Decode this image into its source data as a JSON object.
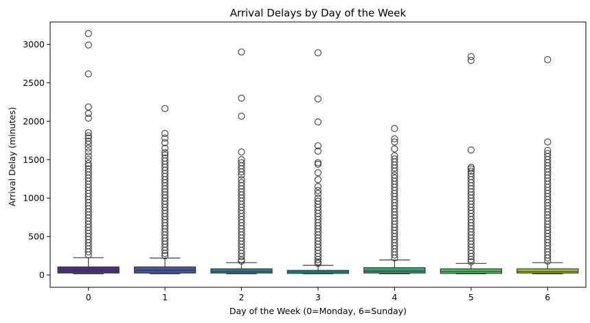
{
  "chart_data": {
    "type": "box",
    "title": "Arrival Delays by Day of the Week",
    "xlabel": "Day of the Week (0=Monday, 6=Sunday)",
    "ylabel": "Arrival Delay (minutes)",
    "categories": [
      "0",
      "1",
      "2",
      "3",
      "4",
      "5",
      "6"
    ],
    "ylim": [
      -160,
      3290
    ],
    "yticks": [
      0,
      500,
      1000,
      1500,
      2000,
      2500,
      3000
    ],
    "grid": false,
    "palette": "viridis",
    "boxes": [
      {
        "category": "0",
        "color": "#4b2f7f",
        "whisker_low": 15,
        "q1": 25,
        "median": 55,
        "q3": 105,
        "whisker_high": 225,
        "outliers": [
          3140,
          2990,
          2615,
          2185,
          2100,
          2040,
          1850,
          1810,
          1780,
          1740,
          1700,
          1650,
          1600,
          1545,
          1500,
          1450,
          1420,
          1380,
          1340,
          1300,
          1260,
          1220,
          1180,
          1140,
          1100,
          1060,
          1020,
          980,
          940,
          900,
          860,
          820,
          780,
          740,
          700,
          660,
          620,
          580,
          540,
          500,
          460,
          420,
          380,
          340,
          300,
          260
        ]
      },
      {
        "category": "1",
        "color": "#3e5a93",
        "whisker_low": 15,
        "q1": 25,
        "median": 60,
        "q3": 105,
        "whisker_high": 220,
        "outliers": [
          2165,
          1840,
          1780,
          1720,
          1650,
          1590,
          1560,
          1520,
          1480,
          1440,
          1400,
          1360,
          1320,
          1280,
          1240,
          1200,
          1160,
          1120,
          1080,
          1040,
          1000,
          960,
          920,
          880,
          840,
          800,
          760,
          720,
          680,
          640,
          600,
          560,
          520,
          480,
          440,
          400,
          360,
          320,
          280,
          250
        ]
      },
      {
        "category": "2",
        "color": "#2f7c91",
        "whisker_low": 15,
        "q1": 25,
        "median": 45,
        "q3": 80,
        "whisker_high": 160,
        "outliers": [
          2900,
          2300,
          2065,
          1600,
          1500,
          1460,
          1420,
          1380,
          1340,
          1300,
          1240,
          1200,
          1160,
          1120,
          1080,
          1040,
          1000,
          960,
          920,
          880,
          840,
          800,
          760,
          720,
          680,
          640,
          600,
          560,
          520,
          480,
          440,
          400,
          360,
          320,
          280,
          240,
          200,
          180
        ]
      },
      {
        "category": "3",
        "color": "#2a9b8a",
        "whisker_low": 15,
        "q1": 20,
        "median": 40,
        "q3": 60,
        "whisker_high": 125,
        "outliers": [
          2890,
          2290,
          1990,
          1680,
          1610,
          1460,
          1440,
          1330,
          1240,
          1150,
          1100,
          1060,
          1000,
          960,
          920,
          880,
          840,
          800,
          760,
          720,
          680,
          640,
          600,
          560,
          520,
          480,
          440,
          400,
          360,
          320,
          280,
          240,
          200,
          170,
          150
        ]
      },
      {
        "category": "4",
        "color": "#2ea373",
        "whisker_low": 15,
        "q1": 25,
        "median": 50,
        "q3": 95,
        "whisker_high": 195,
        "outliers": [
          1905,
          1770,
          1730,
          1640,
          1550,
          1510,
          1470,
          1430,
          1390,
          1350,
          1300,
          1260,
          1220,
          1180,
          1140,
          1100,
          1060,
          1020,
          980,
          940,
          900,
          860,
          820,
          780,
          740,
          700,
          660,
          620,
          580,
          540,
          500,
          460,
          420,
          380,
          340,
          300,
          260,
          220
        ]
      },
      {
        "category": "5",
        "color": "#58b95b",
        "whisker_low": 15,
        "q1": 20,
        "median": 45,
        "q3": 80,
        "whisker_high": 150,
        "outliers": [
          2840,
          2790,
          1625,
          1400,
          1380,
          1350,
          1320,
          1280,
          1240,
          1200,
          1160,
          1120,
          1080,
          1040,
          1000,
          960,
          920,
          880,
          840,
          800,
          760,
          720,
          680,
          640,
          600,
          560,
          520,
          480,
          440,
          400,
          360,
          320,
          280,
          240,
          200,
          170
        ]
      },
      {
        "category": "6",
        "color": "#a0c440",
        "whisker_low": 15,
        "q1": 25,
        "median": 45,
        "q3": 80,
        "whisker_high": 160,
        "outliers": [
          2800,
          1730,
          1620,
          1580,
          1540,
          1500,
          1460,
          1420,
          1380,
          1340,
          1300,
          1260,
          1220,
          1180,
          1140,
          1100,
          1060,
          1020,
          980,
          940,
          900,
          860,
          820,
          780,
          740,
          700,
          660,
          620,
          580,
          540,
          500,
          460,
          420,
          380,
          340,
          300,
          260,
          220,
          180
        ]
      }
    ]
  }
}
